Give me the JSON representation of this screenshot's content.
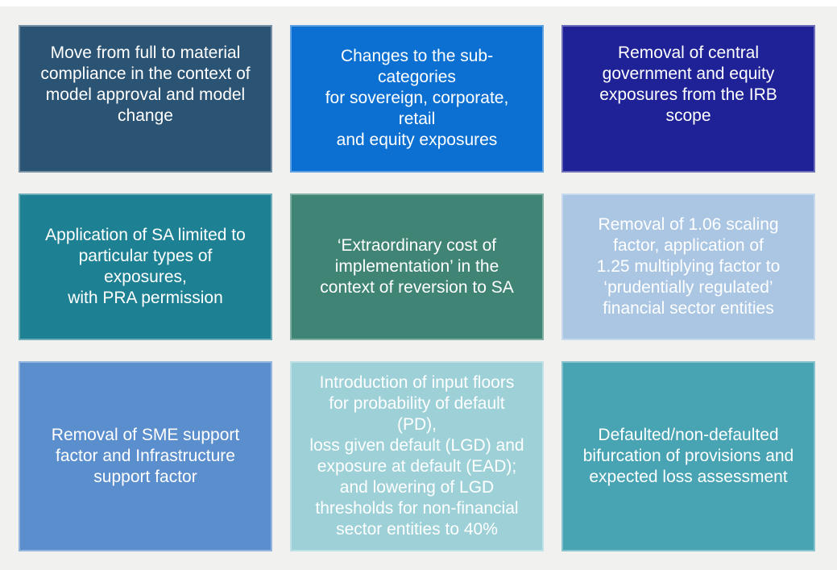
{
  "page": {
    "background": "#F1F1F0",
    "top_strip_color": "#FFFFFF",
    "text_color": "#FFFFFF"
  },
  "tiles": [
    {
      "id": "model-approval-compliance",
      "text": "Move from full to material\ncompliance in the context of\nmodel approval and model\nchange",
      "color": "#2B5373"
    },
    {
      "id": "subcategories-changes",
      "text": "Changes to the sub-categories\nfor sovereign, corporate, retail\nand equity exposures",
      "color": "#0B70D1"
    },
    {
      "id": "irb-scope-removal",
      "text": "Removal of central\ngovernment and equity\nexposures from the IRB\nscope",
      "color": "#1F2296"
    },
    {
      "id": "sa-application",
      "text": "Application of SA limited to\nparticular types of exposures,\nwith PRA permission",
      "color": "#1E8193"
    },
    {
      "id": "extraordinary-cost",
      "text": "‘Extraordinary cost of\nimplementation’ in the\ncontext of reversion to SA",
      "color": "#3F8474"
    },
    {
      "id": "scaling-factor",
      "text": "Removal of 1.06 scaling\nfactor, application of\n1.25 multiplying factor to\n‘prudentially regulated’\nfinancial sector entities",
      "color": "#AAC6E3"
    },
    {
      "id": "sme-support-factor",
      "text": "Removal of SME support\nfactor and Infrastructure\nsupport factor",
      "color": "#5B8ECD"
    },
    {
      "id": "input-floors",
      "text": "Introduction of input floors\nfor probability of default (PD),\nloss given default (LGD) and\nexposure at default (EAD);\nand lowering of LGD\nthresholds for non-financial\nsector entities to 40%",
      "color": "#9DD0D7"
    },
    {
      "id": "defaulted-bifurcation",
      "text": "Defaulted/non-defaulted\nbifurcation of provisions and\nexpected loss assessment",
      "color": "#48A3B3"
    }
  ]
}
